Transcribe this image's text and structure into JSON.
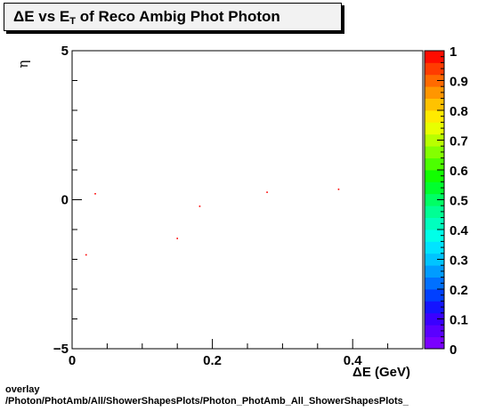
{
  "chart_data": {
    "type": "scatter",
    "title": {
      "delta": "Δ",
      "pre": "E vs E",
      "sub": "T",
      "post": " of Reco Ambig Phot Photon"
    },
    "xlabel": "ΔE (GeV)",
    "ylabel": "η",
    "xlim": [
      0,
      0.5
    ],
    "ylim": [
      -5,
      5
    ],
    "xticks": [
      {
        "v": 0,
        "label": "0"
      },
      {
        "v": 0.2,
        "label": "0.2"
      },
      {
        "v": 0.4,
        "label": "0.4"
      }
    ],
    "yticks": [
      {
        "v": -5,
        "label": "−5"
      },
      {
        "v": 0,
        "label": "0"
      },
      {
        "v": 5,
        "label": "5"
      }
    ],
    "points": [
      {
        "x": 0.02,
        "y": -1.85
      },
      {
        "x": 0.033,
        "y": 0.2
      },
      {
        "x": 0.15,
        "y": -1.3
      },
      {
        "x": 0.182,
        "y": -0.22
      },
      {
        "x": 0.278,
        "y": 0.25
      },
      {
        "x": 0.38,
        "y": 0.35
      }
    ],
    "point_color": "#ff0000",
    "colorbar": {
      "min": 0,
      "max": 1,
      "labels": [
        "0",
        "0.1",
        "0.2",
        "0.3",
        "0.4",
        "0.5",
        "0.6",
        "0.7",
        "0.8",
        "0.9",
        "1"
      ],
      "colors": [
        "#7a00ff",
        "#5a00ff",
        "#3a00ff",
        "#1414ff",
        "#0040ff",
        "#0070ff",
        "#009cff",
        "#00c4ff",
        "#00e4ff",
        "#00ffe8",
        "#00ffbe",
        "#00ff94",
        "#00ff64",
        "#00ff2e",
        "#12ff00",
        "#4cff00",
        "#84ff00",
        "#b8ff00",
        "#e8ff00",
        "#ffea00",
        "#ffc200",
        "#ff9600",
        "#ff6a00",
        "#ff3c00",
        "#ff0c00"
      ]
    },
    "grid": false,
    "legend": "none"
  },
  "footer": {
    "line1": "overlay",
    "line2": "/Photon/PhotAmb/All/ShowerShapesPlots/Photon_PhotAmb_All_ShowerShapesPlots_"
  }
}
